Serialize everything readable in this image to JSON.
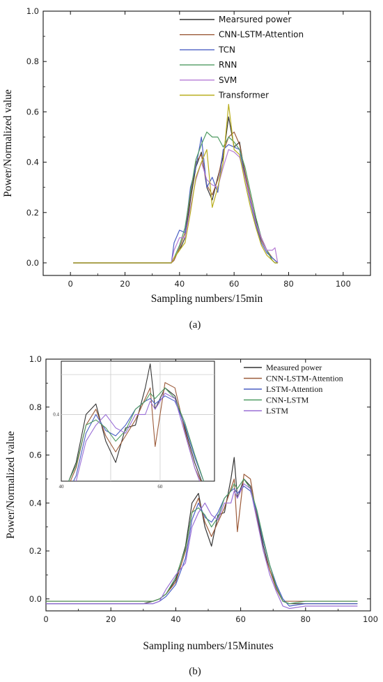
{
  "chart_data": [
    {
      "type": "line",
      "panel_label": "(a)",
      "xlabel": "Sampling numbers/15min",
      "ylabel": "Power/Normalized value",
      "xlim": [
        -10,
        110
      ],
      "ylim": [
        -0.05,
        1.0
      ],
      "xticks": [
        0,
        20,
        40,
        60,
        80,
        100
      ],
      "yticks": [
        0.0,
        0.2,
        0.4,
        0.6,
        0.8,
        1.0
      ],
      "grid": false,
      "legend_position": "top-right",
      "series": [
        {
          "name": "Mearsured power",
          "color": "#333333",
          "x": [
            1,
            37,
            38,
            40,
            42,
            44,
            46,
            48,
            50,
            52,
            54,
            56,
            58,
            60,
            62,
            64,
            66,
            68,
            70,
            72,
            74,
            75,
            76
          ],
          "y": [
            0,
            0,
            0.02,
            0.05,
            0.1,
            0.25,
            0.38,
            0.44,
            0.3,
            0.25,
            0.34,
            0.42,
            0.58,
            0.46,
            0.48,
            0.35,
            0.25,
            0.17,
            0.1,
            0.05,
            0.01,
            0,
            0
          ]
        },
        {
          "name": "CNN-LSTM-Attention",
          "color": "#9c5b3a",
          "x": [
            1,
            37,
            38,
            40,
            42,
            44,
            46,
            48,
            50,
            52,
            54,
            56,
            58,
            60,
            62,
            64,
            66,
            68,
            70,
            72,
            74,
            75,
            76
          ],
          "y": [
            0,
            0,
            0.01,
            0.06,
            0.12,
            0.27,
            0.4,
            0.43,
            0.31,
            0.27,
            0.33,
            0.44,
            0.5,
            0.52,
            0.47,
            0.36,
            0.26,
            0.16,
            0.09,
            0.05,
            0.02,
            0.01,
            0
          ]
        },
        {
          "name": "TCN",
          "color": "#4a5fc4",
          "x": [
            1,
            37,
            38,
            40,
            42,
            44,
            46,
            48,
            50,
            52,
            54,
            56,
            58,
            60,
            62,
            64,
            66,
            68,
            70,
            72,
            74,
            75,
            76
          ],
          "y": [
            0,
            0,
            0.08,
            0.13,
            0.12,
            0.3,
            0.38,
            0.5,
            0.3,
            0.34,
            0.28,
            0.45,
            0.47,
            0.46,
            0.45,
            0.34,
            0.24,
            0.15,
            0.08,
            0.04,
            0.02,
            0.01,
            0
          ]
        },
        {
          "name": "RNN",
          "color": "#4f9b62",
          "x": [
            1,
            37,
            38,
            40,
            42,
            44,
            46,
            48,
            50,
            52,
            54,
            56,
            58,
            60,
            62,
            64,
            66,
            68,
            70,
            72,
            74,
            75,
            76
          ],
          "y": [
            0,
            0,
            0.02,
            0.07,
            0.14,
            0.28,
            0.41,
            0.47,
            0.52,
            0.5,
            0.5,
            0.46,
            0.5,
            0.48,
            0.45,
            0.38,
            0.28,
            0.18,
            0.1,
            0.05,
            0.01,
            0,
            0
          ]
        },
        {
          "name": "SVM",
          "color": "#b57bd4",
          "x": [
            1,
            37,
            38,
            40,
            42,
            44,
            46,
            48,
            50,
            52,
            54,
            56,
            58,
            60,
            62,
            64,
            66,
            68,
            70,
            72,
            74,
            75,
            76
          ],
          "y": [
            0,
            0,
            0.05,
            0.1,
            0.1,
            0.22,
            0.33,
            0.4,
            0.33,
            0.31,
            0.3,
            0.38,
            0.45,
            0.44,
            0.42,
            0.34,
            0.25,
            0.16,
            0.1,
            0.05,
            0.05,
            0.06,
            0
          ]
        },
        {
          "name": "Transformer",
          "color": "#b8ad1c",
          "x": [
            1,
            37,
            38,
            40,
            42,
            44,
            46,
            48,
            50,
            52,
            54,
            56,
            58,
            60,
            62,
            64,
            66,
            68,
            70,
            72,
            74,
            75,
            76
          ],
          "y": [
            0,
            0,
            0.02,
            0.05,
            0.08,
            0.2,
            0.34,
            0.4,
            0.45,
            0.22,
            0.3,
            0.4,
            0.63,
            0.45,
            0.43,
            0.32,
            0.22,
            0.14,
            0.07,
            0.03,
            0.01,
            0,
            0
          ]
        }
      ]
    },
    {
      "type": "line",
      "panel_label": "(b)",
      "xlabel": "Sampling numbers/15Minutes",
      "ylabel": "Power/Normalized value",
      "xlim": [
        0,
        100
      ],
      "ylim": [
        -0.05,
        1.0
      ],
      "xticks": [
        0,
        20,
        40,
        60,
        80,
        100
      ],
      "yticks": [
        0.0,
        0.2,
        0.4,
        0.6,
        0.8,
        1.0
      ],
      "grid": false,
      "legend_position": "top-right",
      "inset": {
        "xlim": [
          40,
          71
        ],
        "xticks": [
          40,
          60
        ],
        "ytick_labels": [
          "0.4"
        ]
      },
      "series": [
        {
          "name": "Measured power",
          "color": "#333333",
          "x": [
            0,
            10,
            20,
            30,
            33,
            35,
            37,
            40,
            43,
            45,
            47,
            49,
            51,
            53,
            55,
            57,
            58,
            59,
            61,
            63,
            65,
            67,
            69,
            71,
            73,
            75,
            80,
            90,
            96
          ],
          "y": [
            -0.02,
            -0.02,
            -0.02,
            -0.02,
            -0.01,
            0.0,
            0.02,
            0.08,
            0.22,
            0.4,
            0.44,
            0.3,
            0.22,
            0.35,
            0.36,
            0.5,
            0.59,
            0.42,
            0.5,
            0.47,
            0.35,
            0.22,
            0.12,
            0.05,
            -0.01,
            -0.02,
            -0.02,
            -0.02,
            -0.02
          ]
        },
        {
          "name": "CNN-LSTM-Attention",
          "color": "#9c5b3a",
          "x": [
            0,
            10,
            20,
            30,
            33,
            35,
            37,
            40,
            43,
            45,
            47,
            49,
            51,
            53,
            55,
            57,
            58,
            59,
            61,
            63,
            65,
            67,
            69,
            71,
            73,
            75,
            80,
            90,
            96
          ],
          "y": [
            -0.01,
            -0.01,
            -0.01,
            -0.01,
            -0.01,
            0.0,
            0.02,
            0.07,
            0.2,
            0.36,
            0.42,
            0.32,
            0.26,
            0.32,
            0.38,
            0.46,
            0.5,
            0.28,
            0.52,
            0.5,
            0.34,
            0.2,
            0.12,
            0.04,
            -0.01,
            -0.01,
            -0.01,
            -0.01,
            -0.01
          ]
        },
        {
          "name": "LSTM-Attention",
          "color": "#4a5fc4",
          "x": [
            0,
            10,
            20,
            30,
            33,
            35,
            37,
            40,
            43,
            45,
            47,
            49,
            51,
            53,
            55,
            57,
            58,
            59,
            61,
            63,
            65,
            67,
            69,
            71,
            73,
            75,
            80,
            90,
            96
          ],
          "y": [
            -0.02,
            -0.02,
            -0.02,
            -0.02,
            -0.02,
            -0.01,
            0.01,
            0.06,
            0.17,
            0.33,
            0.4,
            0.34,
            0.32,
            0.36,
            0.42,
            0.45,
            0.46,
            0.44,
            0.47,
            0.45,
            0.36,
            0.24,
            0.14,
            0.06,
            0.0,
            -0.03,
            -0.02,
            -0.02,
            -0.02
          ]
        },
        {
          "name": "CNN-LSTM",
          "color": "#4f9b62",
          "x": [
            0,
            10,
            20,
            30,
            33,
            35,
            37,
            40,
            43,
            45,
            47,
            49,
            51,
            53,
            55,
            57,
            58,
            59,
            61,
            63,
            65,
            67,
            69,
            71,
            73,
            75,
            80,
            90,
            96
          ],
          "y": [
            -0.01,
            -0.01,
            -0.01,
            -0.01,
            -0.01,
            0.0,
            0.02,
            0.09,
            0.21,
            0.36,
            0.38,
            0.35,
            0.3,
            0.34,
            0.42,
            0.45,
            0.48,
            0.46,
            0.5,
            0.46,
            0.37,
            0.25,
            0.14,
            0.05,
            -0.01,
            -0.02,
            -0.01,
            -0.01,
            -0.01
          ]
        },
        {
          "name": "LSTM",
          "color": "#9a6fd6",
          "x": [
            0,
            10,
            20,
            30,
            33,
            35,
            37,
            40,
            43,
            45,
            47,
            49,
            51,
            53,
            55,
            57,
            58,
            59,
            61,
            63,
            65,
            67,
            69,
            71,
            73,
            75,
            80,
            90,
            96
          ],
          "y": [
            -0.02,
            -0.02,
            -0.02,
            -0.02,
            -0.02,
            -0.01,
            0.04,
            0.1,
            0.15,
            0.3,
            0.36,
            0.4,
            0.35,
            0.33,
            0.4,
            0.4,
            0.45,
            0.42,
            0.48,
            0.46,
            0.33,
            0.2,
            0.1,
            0.03,
            -0.03,
            -0.04,
            -0.03,
            -0.03,
            -0.03
          ]
        }
      ]
    }
  ]
}
